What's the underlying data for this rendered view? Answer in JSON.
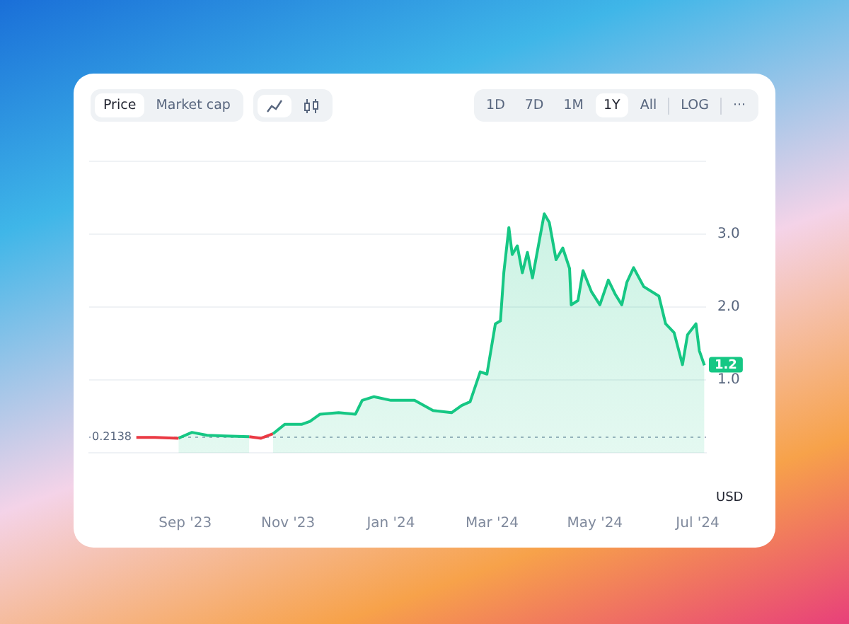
{
  "chart_data": {
    "type": "area",
    "x": [
      "2023-10-23",
      "2023-10-30",
      "2023-11-09",
      "2023-11-14",
      "2023-11-20",
      "2023-12-01",
      "2023-12-11",
      "2023-12-15",
      "2023-12-22",
      "2024-01-01",
      "2024-01-15",
      "2024-01-26",
      "2024-02-06",
      "2024-02-12",
      "2024-02-17",
      "2024-02-23",
      "2024-02-27",
      "2024-03-03",
      "2024-03-06",
      "2024-03-08",
      "2024-03-11",
      "2024-03-13",
      "2024-03-16",
      "2024-03-19",
      "2024-03-22",
      "2024-03-25",
      "2024-04-01",
      "2024-04-04",
      "2024-04-08",
      "2024-04-12",
      "2024-04-16",
      "2024-04-17",
      "2024-04-21",
      "2024-04-24",
      "2024-04-29",
      "2024-05-04",
      "2024-05-09",
      "2024-05-13",
      "2024-05-17",
      "2024-05-20",
      "2024-05-24",
      "2024-05-30",
      "2024-06-08",
      "2024-06-12",
      "2024-06-17",
      "2024-06-22",
      "2024-06-25",
      "2024-06-30",
      "2024-07-02",
      "2024-07-05"
    ],
    "series": [
      {
        "type": "line",
        "color": "#ea3943",
        "x": [
          "2023-08-03",
          "2023-08-14",
          "2023-08-28"
        ],
        "values": [
          0.21,
          0.21,
          0.2
        ]
      },
      {
        "type": "line",
        "color": "#ea3943",
        "x": [
          "2023-10-09",
          "2023-10-16",
          "2023-10-23"
        ],
        "values": [
          0.22,
          0.2,
          0.26
        ]
      },
      {
        "color": "#16c784",
        "x": [
          "2023-08-28",
          "2023-09-05",
          "2023-09-14",
          "2023-09-25",
          "2023-10-09"
        ],
        "values": [
          0.2,
          0.28,
          0.24,
          0.23,
          0.22
        ]
      },
      {
        "color": "#16c784",
        "values": [
          0.26,
          0.39,
          0.39,
          0.43,
          0.53,
          0.55,
          0.53,
          0.72,
          0.77,
          0.72,
          0.72,
          0.58,
          0.55,
          0.65,
          0.7,
          1.11,
          1.08,
          1.77,
          1.81,
          2.47,
          3.09,
          2.72,
          2.84,
          2.47,
          2.75,
          2.4,
          3.28,
          3.16,
          2.65,
          2.81,
          2.53,
          2.03,
          2.09,
          2.5,
          2.21,
          2.03,
          2.37,
          2.18,
          2.03,
          2.34,
          2.54,
          2.28,
          2.15,
          1.77,
          1.65,
          1.21,
          1.62,
          1.77,
          1.4,
          1.2
        ]
      }
    ],
    "xlim": [
      "2023-07-06",
      "2024-07-06"
    ],
    "xticks": [
      {
        "value": "2023-09-01",
        "label": "Sep '23"
      },
      {
        "value": "2023-11-01",
        "label": "Nov '23"
      },
      {
        "value": "2024-01-01",
        "label": "Jan '24"
      },
      {
        "value": "2024-03-01",
        "label": "Mar '24"
      },
      {
        "value": "2024-05-01",
        "label": "May '24"
      },
      {
        "value": "2024-07-01",
        "label": "Jul '24"
      }
    ],
    "ylim": [
      0,
      4
    ],
    "yticks": [
      {
        "value": 1,
        "label": "1.0"
      },
      {
        "value": 2,
        "label": "2.0"
      },
      {
        "value": 3,
        "label": "3.0"
      }
    ],
    "grid": "y",
    "legend": false,
    "ref_lines": [
      {
        "axis": "y",
        "value": 0.2138,
        "label": "0.2138",
        "color": "#a6b0c3",
        "line_style": "dotted"
      }
    ],
    "annotations": [
      "Price",
      "Market cap",
      "1D",
      "7D",
      "1M",
      "1Y",
      "All",
      "LOG",
      "···",
      "USD",
      {
        "text": "1.2",
        "x": "2024-07-05",
        "y": 1.2
      }
    ]
  }
}
